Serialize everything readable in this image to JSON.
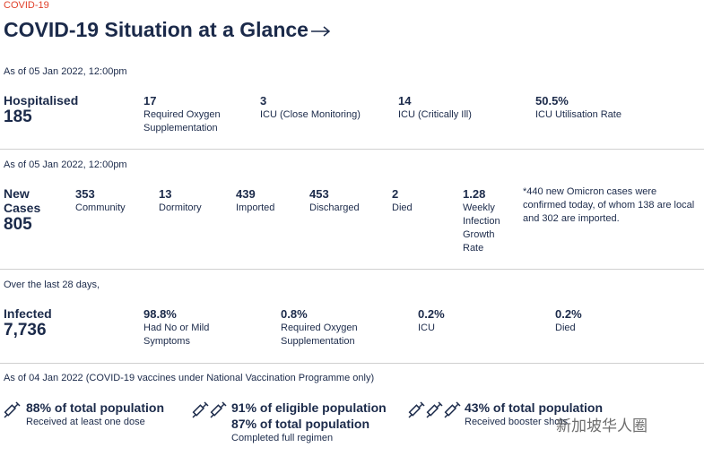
{
  "header": {
    "kicker": "COVID-19",
    "title": "COVID-19 Situation at a Glance"
  },
  "sections": [
    {
      "date": "As of 05 Jan 2022, 12:00pm",
      "label": "Hospitalised",
      "total": "185",
      "items": [
        {
          "value": "17",
          "label": "Required Oxygen Supplementation"
        },
        {
          "value": "3",
          "label": "ICU (Close Monitoring)"
        },
        {
          "value": "14",
          "label": "ICU (Critically Ill)"
        },
        {
          "value": "50.5%",
          "label": "ICU Utilisation Rate"
        }
      ]
    },
    {
      "date": "As of 05 Jan 2022, 12:00pm",
      "label": "New Cases",
      "total": "805",
      "items": [
        {
          "value": "353",
          "label": "Community"
        },
        {
          "value": "13",
          "label": "Dormitory"
        },
        {
          "value": "439",
          "label": "Imported"
        },
        {
          "value": "453",
          "label": "Discharged"
        },
        {
          "value": "2",
          "label": "Died"
        },
        {
          "value": "1.28",
          "label": "Weekly Infection Growth Rate"
        }
      ],
      "note": "*440 new Omicron cases were confirmed today, of whom 138 are local and 302 are imported."
    },
    {
      "date": "Over the last 28 days,",
      "label": "Infected",
      "total": "7,736",
      "items": [
        {
          "value": "98.8%",
          "label": "Had No or Mild Symptoms"
        },
        {
          "value": "0.8%",
          "label": "Required Oxygen Supplementation"
        },
        {
          "value": "0.2%",
          "label": "ICU"
        },
        {
          "value": "0.2%",
          "label": "Died"
        }
      ]
    }
  ],
  "vaccination": {
    "date": "As of 04 Jan 2022 (COVID-19 vaccines under National Vaccination Programme only)",
    "items": [
      {
        "lines": [
          "88% of total population"
        ],
        "caption": "Received at least one dose"
      },
      {
        "lines": [
          "91% of eligible population",
          "87% of total population"
        ],
        "caption": "Completed full regimen"
      },
      {
        "lines": [
          "43% of total population"
        ],
        "caption": "Received booster shots"
      }
    ]
  },
  "watermark": "新加坡华人圈"
}
